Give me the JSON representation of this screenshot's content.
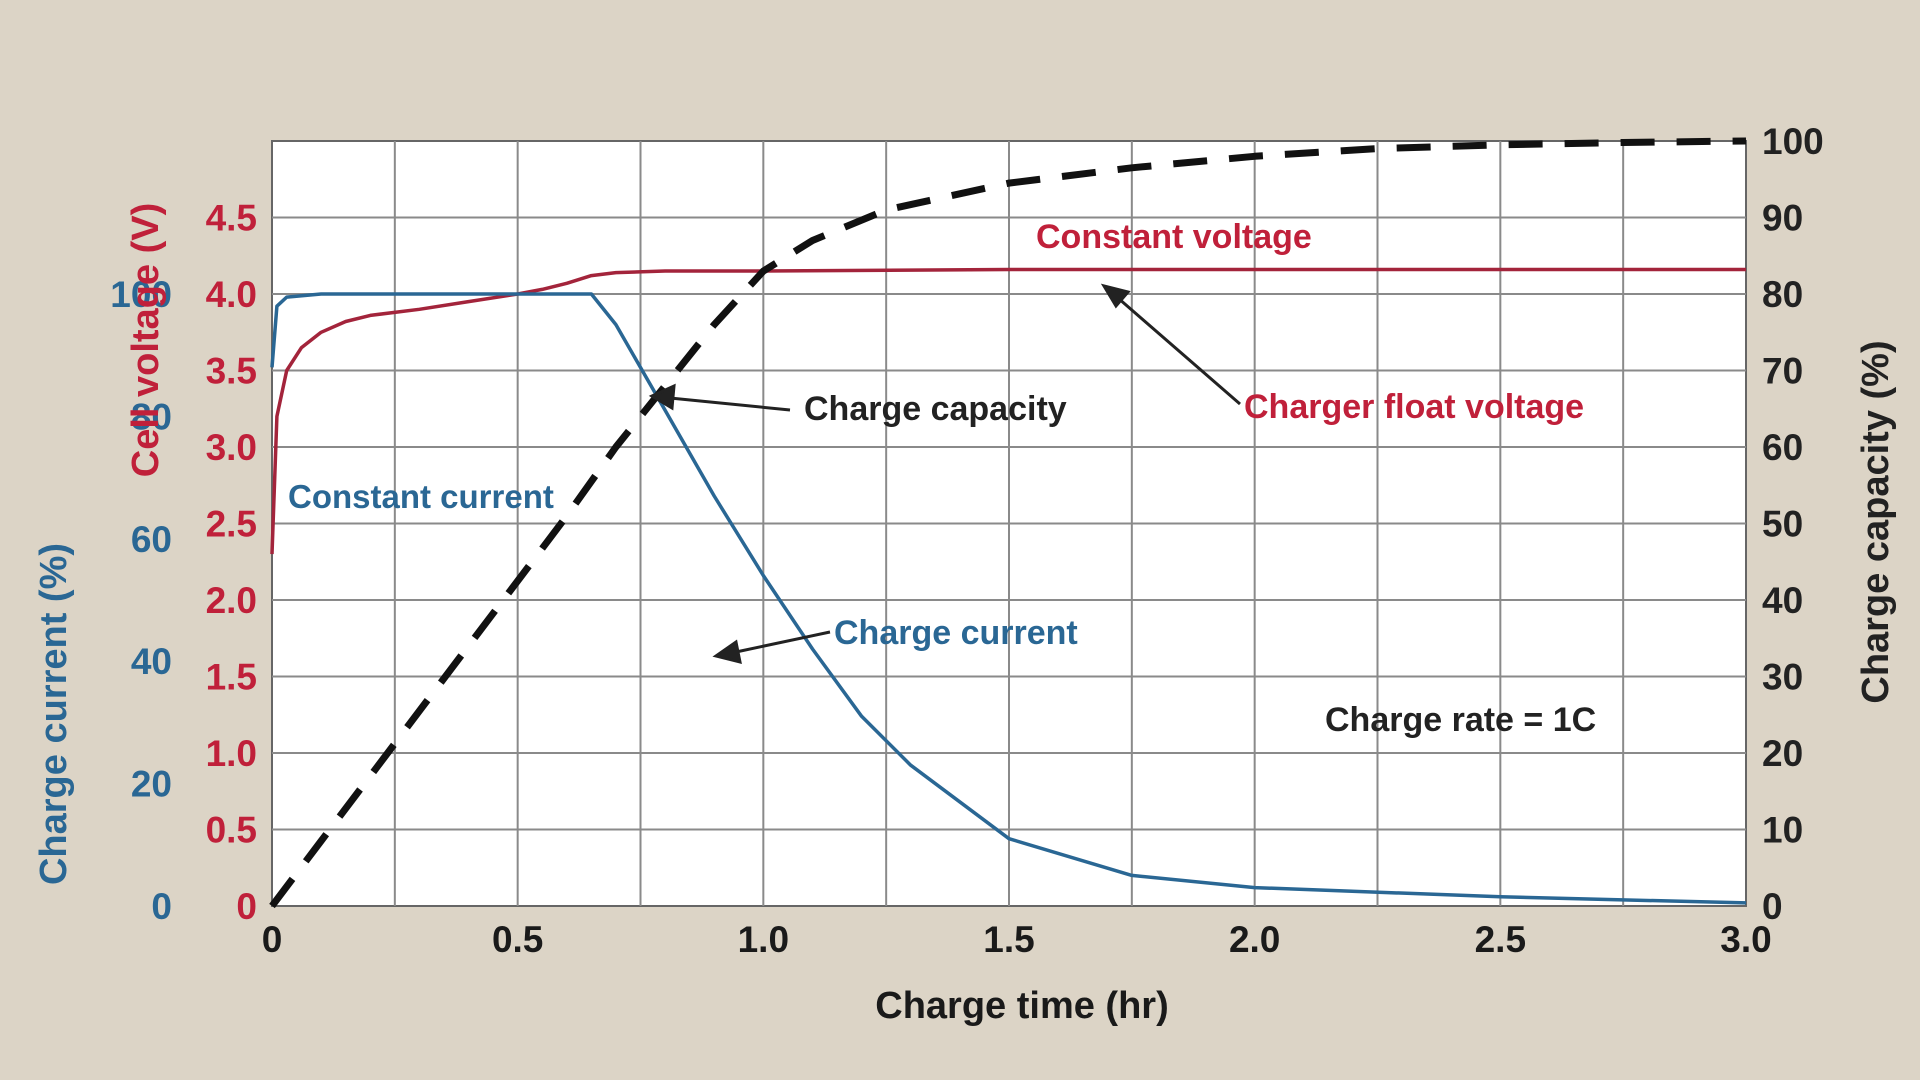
{
  "chart_data": {
    "type": "line",
    "xlabel": "Charge time (hr)",
    "xlim": [
      0,
      3.0
    ],
    "x_ticks": [
      "0",
      "0.5",
      "1.0",
      "1.5",
      "2.0",
      "2.5",
      "3.0"
    ],
    "x_tick_values": [
      0,
      0.5,
      1.0,
      1.5,
      2.0,
      2.5,
      3.0
    ],
    "grid": true,
    "axes": {
      "voltage": {
        "label": "Cell voltage (V)",
        "side": "left-inner",
        "color": "#c0203a",
        "ylim": [
          0,
          5.0
        ],
        "ticks": [
          "0",
          "0.5",
          "1.0",
          "1.5",
          "2.0",
          "2.5",
          "3.0",
          "3.5",
          "4.0",
          "4.5"
        ],
        "tick_values": [
          0,
          0.5,
          1.0,
          1.5,
          2.0,
          2.5,
          3.0,
          3.5,
          4.0,
          4.5
        ]
      },
      "current": {
        "label": "Charge current (%)",
        "side": "left-outer",
        "color": "#2a6794",
        "ylim": [
          0,
          125
        ],
        "ticks": [
          "0",
          "20",
          "40",
          "60",
          "80",
          "100"
        ],
        "tick_values": [
          0,
          20,
          40,
          60,
          80,
          100
        ]
      },
      "capacity": {
        "label": "Charge capacity (%)",
        "side": "right",
        "color": "#222222",
        "ylim": [
          0,
          100
        ],
        "ticks": [
          "0",
          "10",
          "20",
          "30",
          "40",
          "50",
          "60",
          "70",
          "80",
          "90",
          "100"
        ],
        "tick_values": [
          0,
          10,
          20,
          30,
          40,
          50,
          60,
          70,
          80,
          90,
          100
        ]
      }
    },
    "series": [
      {
        "axis": "voltage",
        "style": "solid",
        "color": "#a3243b",
        "x": [
          0,
          0.01,
          0.03,
          0.06,
          0.1,
          0.15,
          0.2,
          0.3,
          0.4,
          0.5,
          0.55,
          0.6,
          0.65,
          0.7,
          0.8,
          1.0,
          1.5,
          2.0,
          2.5,
          3.0
        ],
        "y": [
          2.3,
          3.2,
          3.5,
          3.65,
          3.75,
          3.82,
          3.86,
          3.9,
          3.95,
          4.0,
          4.03,
          4.07,
          4.12,
          4.14,
          4.15,
          4.15,
          4.16,
          4.16,
          4.16,
          4.16
        ]
      },
      {
        "axis": "current",
        "style": "solid",
        "color": "#2a6794",
        "x": [
          0,
          0.01,
          0.03,
          0.1,
          0.3,
          0.5,
          0.6,
          0.65,
          0.7,
          0.8,
          0.9,
          1.0,
          1.1,
          1.2,
          1.3,
          1.5,
          1.75,
          2.0,
          2.5,
          3.0
        ],
        "y": [
          88,
          98,
          99.5,
          100,
          100,
          100,
          100,
          100,
          95,
          81,
          67,
          54,
          42,
          31,
          23,
          11,
          5,
          3,
          1.5,
          0.5
        ]
      },
      {
        "axis": "capacity",
        "style": "dashed",
        "color": "#111111",
        "x": [
          0,
          0.1,
          0.2,
          0.3,
          0.4,
          0.5,
          0.6,
          0.7,
          0.8,
          0.9,
          1.0,
          1.1,
          1.25,
          1.5,
          1.75,
          2.0,
          2.25,
          2.5,
          2.75,
          3.0
        ],
        "y": [
          0,
          8.5,
          17,
          25.5,
          34,
          42.5,
          51,
          60,
          68,
          76,
          83,
          87,
          91,
          94.5,
          96.5,
          98,
          99,
          99.5,
          99.8,
          100
        ]
      }
    ],
    "annotations": [
      {
        "text": "Constant voltage",
        "color": "#c0203a"
      },
      {
        "text": "Charger float voltage",
        "color": "#c0203a"
      },
      {
        "text": "Charge capacity",
        "color": "#222222"
      },
      {
        "text": "Constant current",
        "color": "#2a6794"
      },
      {
        "text": "Charge current",
        "color": "#2a6794"
      },
      {
        "text": "Charge rate = 1C",
        "color": "#222222"
      }
    ]
  }
}
